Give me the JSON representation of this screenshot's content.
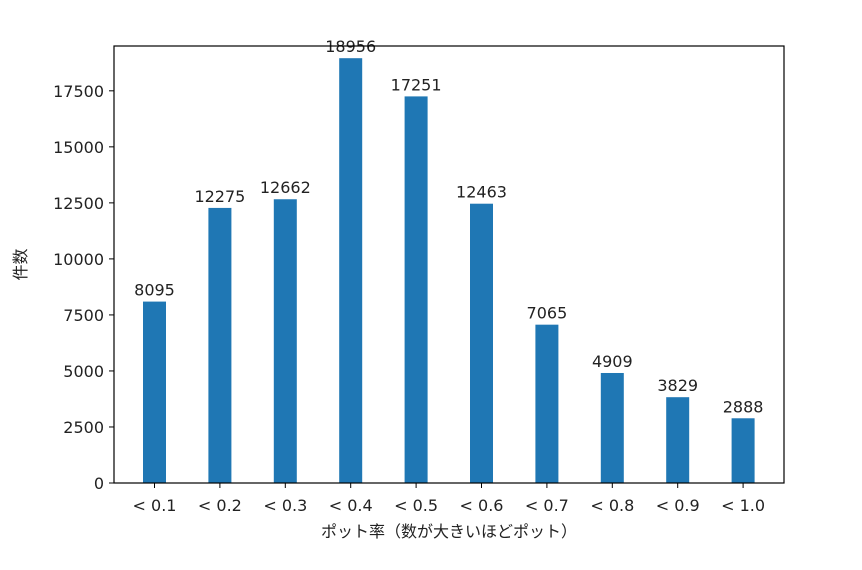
{
  "chart_data": {
    "type": "bar",
    "title": "",
    "xlabel": "ポット率（数が大きいほどポット）",
    "ylabel": "件数",
    "categories": [
      "< 0.1",
      "< 0.2",
      "< 0.3",
      "< 0.4",
      "< 0.5",
      "< 0.6",
      "< 0.7",
      "< 0.8",
      "< 0.9",
      "< 1.0"
    ],
    "values": [
      8095,
      12275,
      12662,
      18956,
      17251,
      12463,
      7065,
      4909,
      3829,
      2888
    ],
    "yticks": [
      0,
      2500,
      5000,
      7500,
      10000,
      12500,
      15000,
      17500
    ],
    "ylim": [
      0,
      19500
    ],
    "bar_color": "#1f77b4",
    "grid": false,
    "data_labels": true
  }
}
